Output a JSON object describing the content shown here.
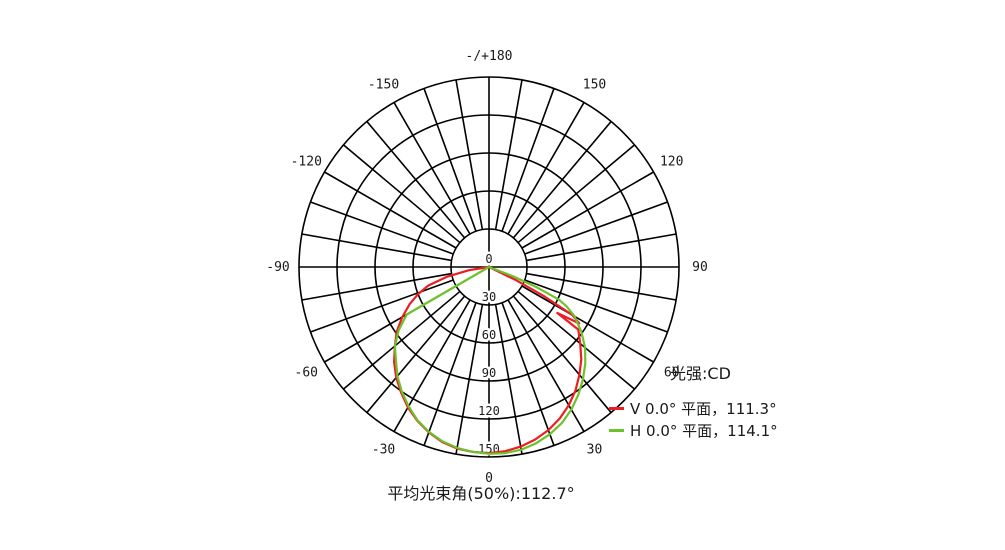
{
  "chart_data": {
    "type": "polar_line",
    "title": "光强:CD",
    "intensity_unit": "CD",
    "footer_note": "平均光束角(50%):112.7°",
    "average_beam_angle_50pct_deg": 112.7,
    "angle_axis": {
      "grid_step_deg": 10,
      "label_step_deg": 30,
      "labels": [
        {
          "angle": 180,
          "text": "-/+180"
        },
        {
          "angle": 150,
          "text": "150"
        },
        {
          "angle": 120,
          "text": "120"
        },
        {
          "angle": 90,
          "text": "90"
        },
        {
          "angle": 60,
          "text": "60"
        },
        {
          "angle": 30,
          "text": "30"
        },
        {
          "angle": 0,
          "text": "0"
        },
        {
          "angle": -30,
          "text": "-30"
        },
        {
          "angle": -60,
          "text": "-60"
        },
        {
          "angle": -90,
          "text": "-90"
        },
        {
          "angle": -120,
          "text": "-120"
        },
        {
          "angle": -150,
          "text": "-150"
        }
      ]
    },
    "radial_axis": {
      "min": 0,
      "max": 150,
      "step": 30,
      "tick_values": [
        0,
        30,
        60,
        90,
        120,
        150
      ],
      "spoke_inner_value": 30
    },
    "grid_color": "#000000",
    "series": [
      {
        "name": "V",
        "legend_label": "V 0.0° 平面，111.3°",
        "beam_angle_deg": 111.3,
        "color": "#ee1c23",
        "points": [
          [
            -85,
            0
          ],
          [
            -81,
            16
          ],
          [
            -77,
            34
          ],
          [
            -73,
            50
          ],
          [
            -69,
            60
          ],
          [
            -65,
            69
          ],
          [
            -60,
            79
          ],
          [
            -55,
            89
          ],
          [
            -50,
            97
          ],
          [
            -45,
            106
          ],
          [
            -40,
            114
          ],
          [
            -35,
            121
          ],
          [
            -30,
            128
          ],
          [
            -25,
            134
          ],
          [
            -20,
            139
          ],
          [
            -15,
            143
          ],
          [
            -10,
            145.5
          ],
          [
            -5,
            146.5
          ],
          [
            0,
            147
          ],
          [
            5,
            146
          ],
          [
            10,
            144
          ],
          [
            15,
            141
          ],
          [
            20,
            137
          ],
          [
            25,
            132
          ],
          [
            30,
            126
          ],
          [
            35,
            119
          ],
          [
            40,
            111
          ],
          [
            45,
            103
          ],
          [
            50,
            94
          ],
          [
            53,
            89
          ],
          [
            55,
            86
          ],
          [
            56,
            65
          ],
          [
            58,
            84
          ],
          [
            60,
            76
          ],
          [
            62,
            49
          ],
          [
            64,
            24
          ],
          [
            66,
            0
          ]
        ]
      },
      {
        "name": "H",
        "legend_label": "H 0.0° 平面，114.1°",
        "beam_angle_deg": 114.1,
        "color": "#6cc22a",
        "points": [
          [
            -62,
            0
          ],
          [
            -60,
            75
          ],
          [
            -55,
            87
          ],
          [
            -50,
            97
          ],
          [
            -45,
            104
          ],
          [
            -40,
            112.5
          ],
          [
            -35,
            120
          ],
          [
            -30,
            127
          ],
          [
            -25,
            133.5
          ],
          [
            -20,
            138.5
          ],
          [
            -15,
            142.5
          ],
          [
            -10,
            145
          ],
          [
            -5,
            146.5
          ],
          [
            0,
            147.5
          ],
          [
            5,
            147.5
          ],
          [
            10,
            146.5
          ],
          [
            15,
            144
          ],
          [
            20,
            140.5
          ],
          [
            25,
            136
          ],
          [
            30,
            130
          ],
          [
            35,
            123
          ],
          [
            40,
            115.5
          ],
          [
            45,
            107.5
          ],
          [
            50,
            99
          ],
          [
            55,
            89
          ],
          [
            60,
            78
          ],
          [
            63,
            69
          ],
          [
            65,
            61
          ],
          [
            67,
            41
          ],
          [
            69,
            20
          ],
          [
            71,
            0
          ]
        ]
      }
    ]
  },
  "legend": {
    "title": "光强:CD"
  }
}
